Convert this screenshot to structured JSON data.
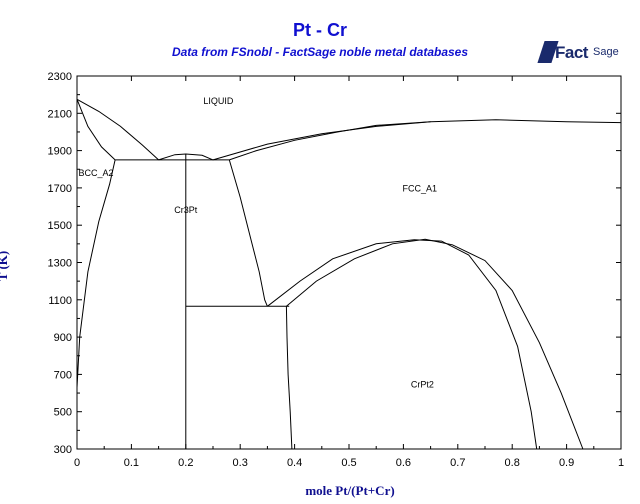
{
  "chart_data": {
    "type": "line",
    "title": "Pt - Cr",
    "subtitle": "Data from FSnobl - FactSage noble metal databases",
    "xlabel": "mole Pt/(Pt+Cr)",
    "ylabel": "T (K)",
    "xlim": [
      0,
      1
    ],
    "ylim": [
      300,
      2300
    ],
    "xticks": [
      "0",
      "0.1",
      "0.2",
      "0.3",
      "0.4",
      "0.5",
      "0.6",
      "0.7",
      "0.8",
      "0.9",
      "1"
    ],
    "yticks": [
      "300",
      "500",
      "700",
      "900",
      "1100",
      "1300",
      "1500",
      "1700",
      "1900",
      "2100",
      "2300"
    ],
    "xtick_values": [
      0,
      0.1,
      0.2,
      0.3,
      0.4,
      0.5,
      0.6,
      0.7,
      0.8,
      0.9,
      1
    ],
    "ytick_values": [
      300,
      500,
      700,
      900,
      1100,
      1300,
      1500,
      1700,
      1900,
      2100,
      2300
    ],
    "grid": false,
    "phase_labels": [
      {
        "text": "LIQUID",
        "x": 0.26,
        "y": 2150
      },
      {
        "text": "BCC_A2",
        "x": 0.035,
        "y": 1765
      },
      {
        "text": "FCC_A1",
        "x": 0.63,
        "y": 1680
      },
      {
        "text": "Cr3Pt",
        "x": 0.2,
        "y": 1565
      },
      {
        "text": "CrPt2",
        "x": 0.635,
        "y": 630
      }
    ],
    "series": [
      {
        "points": [
          [
            0,
            2175
          ],
          [
            0.04,
            2110
          ],
          [
            0.08,
            2030
          ],
          [
            0.12,
            1930
          ],
          [
            0.15,
            1850
          ]
        ]
      },
      {
        "points": [
          [
            0,
            2175
          ],
          [
            0.02,
            2030
          ],
          [
            0.045,
            1920
          ],
          [
            0.07,
            1850
          ]
        ]
      },
      {
        "points": [
          [
            0,
            630
          ],
          [
            0.005,
            900
          ],
          [
            0.02,
            1250
          ],
          [
            0.04,
            1520
          ],
          [
            0.06,
            1720
          ],
          [
            0.07,
            1850
          ]
        ]
      },
      {
        "points": [
          [
            0.07,
            1850
          ],
          [
            0.28,
            1850
          ]
        ]
      },
      {
        "points": [
          [
            0.15,
            1850
          ],
          [
            0.18,
            1878
          ],
          [
            0.2,
            1882
          ],
          [
            0.23,
            1875
          ],
          [
            0.25,
            1850
          ]
        ]
      },
      {
        "points": [
          [
            0.2,
            300
          ],
          [
            0.2,
            1882
          ]
        ]
      },
      {
        "points": [
          [
            0.25,
            1850
          ],
          [
            0.35,
            1935
          ],
          [
            0.45,
            1990
          ],
          [
            0.55,
            2030
          ],
          [
            0.65,
            2055
          ],
          [
            0.77,
            2065
          ],
          [
            0.9,
            2055
          ],
          [
            1,
            2050
          ]
        ]
      },
      {
        "points": [
          [
            0.28,
            1850
          ],
          [
            0.33,
            1900
          ],
          [
            0.4,
            1955
          ],
          [
            0.48,
            2000
          ],
          [
            0.55,
            2035
          ],
          [
            0.65,
            2055
          ]
        ]
      },
      {
        "points": [
          [
            0.28,
            1850
          ],
          [
            0.3,
            1650
          ],
          [
            0.32,
            1420
          ],
          [
            0.335,
            1250
          ],
          [
            0.345,
            1100
          ],
          [
            0.35,
            1065
          ]
        ]
      },
      {
        "points": [
          [
            0.2,
            1065
          ],
          [
            0.39,
            1065
          ]
        ]
      },
      {
        "points": [
          [
            0.35,
            1065
          ],
          [
            0.41,
            1200
          ],
          [
            0.47,
            1320
          ],
          [
            0.55,
            1400
          ],
          [
            0.62,
            1422
          ],
          [
            0.67,
            1415
          ],
          [
            0.72,
            1340
          ],
          [
            0.77,
            1150
          ],
          [
            0.81,
            850
          ],
          [
            0.835,
            500
          ],
          [
            0.845,
            300
          ]
        ]
      },
      {
        "points": [
          [
            0.385,
            1065
          ],
          [
            0.44,
            1200
          ],
          [
            0.51,
            1320
          ],
          [
            0.58,
            1400
          ],
          [
            0.64,
            1425
          ],
          [
            0.69,
            1395
          ],
          [
            0.75,
            1310
          ],
          [
            0.8,
            1150
          ],
          [
            0.85,
            870
          ],
          [
            0.89,
            600
          ],
          [
            0.93,
            300
          ]
        ]
      },
      {
        "points": [
          [
            0.385,
            1065
          ],
          [
            0.386,
            900
          ],
          [
            0.388,
            700
          ],
          [
            0.392,
            500
          ],
          [
            0.395,
            300
          ]
        ]
      }
    ]
  },
  "logo": {
    "brand": "Fact",
    "brand_suffix": "Sage"
  }
}
